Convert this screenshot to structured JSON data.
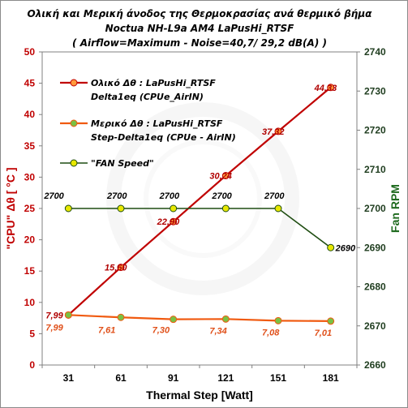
{
  "chart_data": {
    "type": "line",
    "title_lines": [
      "Ολική και Μερική άνοδος της Θερμοκρασίας ανά θερμικό βήμα",
      "Noctua NH-L9a  AM4   LaPusHi_RTSF",
      "( Airflow=Maximum - Noise=40,7/ 29,2 dB(A) )"
    ],
    "x": [
      31,
      61,
      91,
      121,
      151,
      181
    ],
    "xlabel": "Thermal Step [Watt]",
    "ylabel": "\"CPU\" Δθ  [ °C ]",
    "ylabel_right": "Fan RPM",
    "ylim": [
      0,
      50
    ],
    "y_ticks": [
      0,
      5,
      10,
      15,
      20,
      25,
      30,
      35,
      40,
      45,
      50
    ],
    "ylim_right": [
      2660,
      2740
    ],
    "y_ticks_right": [
      2660,
      2670,
      2680,
      2690,
      2700,
      2710,
      2720,
      2730,
      2740
    ],
    "grid": false,
    "legend_position": "top-left",
    "series": [
      {
        "name": "Ολικό Δθ :  LaPusHi_RTSF Delta1eq (CPUe_AirIN)",
        "legend_lines": [
          "Ολικό Δθ :  LaPusHi_RTSF",
          "Delta1eq (CPUe_AirIN)"
        ],
        "axis": "left",
        "color": "#c00000",
        "marker_fill": "#ff9a3c",
        "values": [
          7.99,
          15.6,
          22.9,
          30.24,
          37.32,
          44.33
        ],
        "labels": [
          "7,99",
          "15,60",
          "22,90",
          "30,24",
          "37,32",
          "44,33"
        ]
      },
      {
        "name": "Μερικό Δθ :  LaPusHi_RTSF Step-Delta1eq (CPUe - AirIN)",
        "legend_lines": [
          "Μερικό Δθ :  LaPusHi_RTSF",
          "Step-Delta1eq (CPUe - AirIN)"
        ],
        "axis": "left",
        "color": "#f05a10",
        "marker_fill": "#7ac143",
        "values": [
          7.99,
          7.61,
          7.3,
          7.34,
          7.08,
          7.01
        ],
        "labels": [
          "7,99",
          "7,61",
          "7,30",
          "7,34",
          "7,08",
          "7,01"
        ]
      },
      {
        "name": "\"FAN Speed\"",
        "legend_lines": [
          "\"FAN Speed\""
        ],
        "axis": "right",
        "color": "#1f4d12",
        "marker_fill": "#e8e800",
        "values": [
          2700,
          2700,
          2700,
          2700,
          2700,
          2690
        ],
        "labels": [
          "2700",
          "2700",
          "2700",
          "2700",
          "2700",
          "2690"
        ]
      }
    ]
  }
}
